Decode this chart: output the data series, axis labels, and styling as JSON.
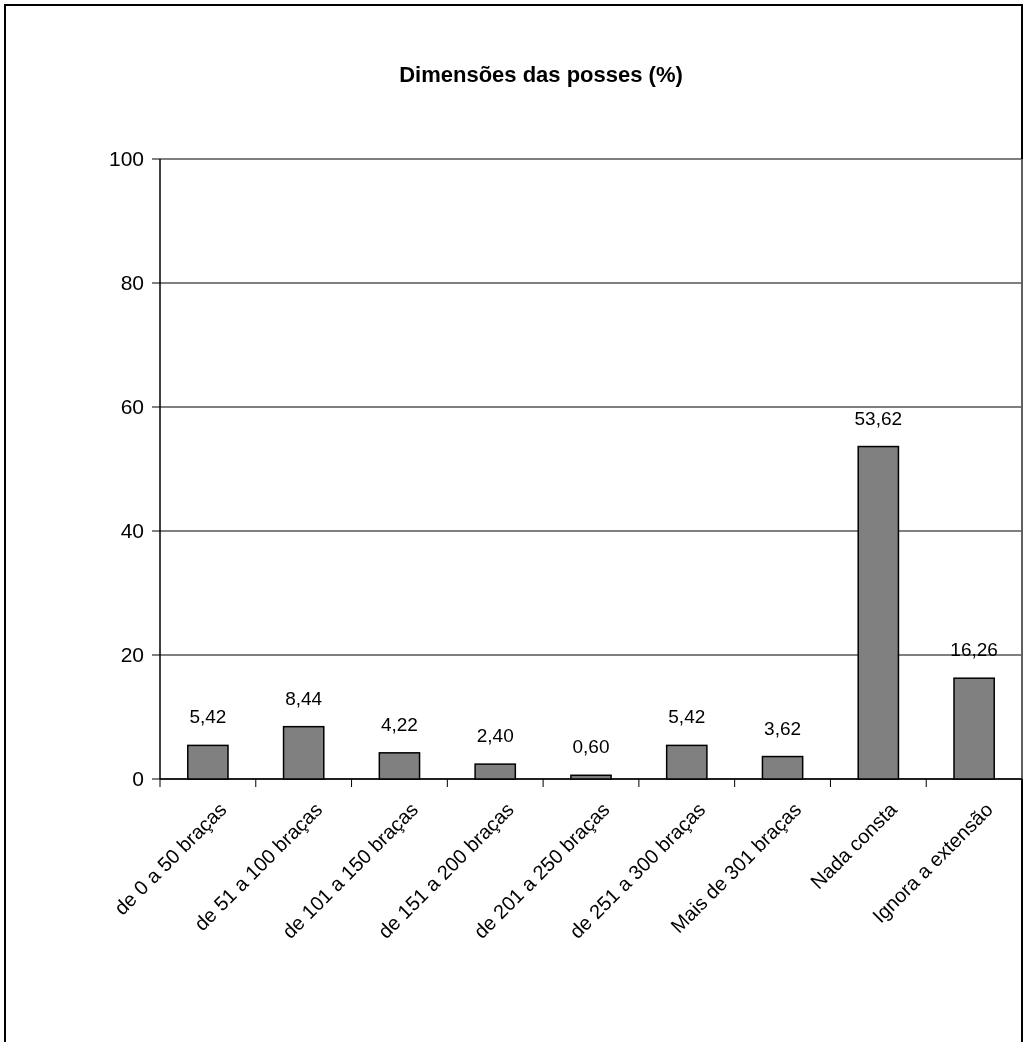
{
  "chart_data": {
    "type": "bar",
    "title": "Dimensões das posses (%)",
    "categories": [
      "de 0 a 50 braças",
      "de 51 a 100 braças",
      "de 101 a 150 braças",
      "de 151 a 200 braças",
      "de 201 a 250 braças",
      "de 251 a 300 braças",
      "Mais de 301 braças",
      "Nada consta",
      "Ignora a extensão"
    ],
    "values": [
      5.42,
      8.44,
      4.22,
      2.4,
      0.6,
      5.42,
      3.62,
      53.62,
      16.26
    ],
    "value_labels": [
      "5,42",
      "8,44",
      "4,22",
      "2,40",
      "0,60",
      "5,42",
      "3,62",
      "53,62",
      "16,26"
    ],
    "color": "#808080",
    "ylim": [
      0,
      100
    ],
    "yticks": [
      0,
      20,
      40,
      60,
      80,
      100
    ],
    "grid": "y"
  }
}
